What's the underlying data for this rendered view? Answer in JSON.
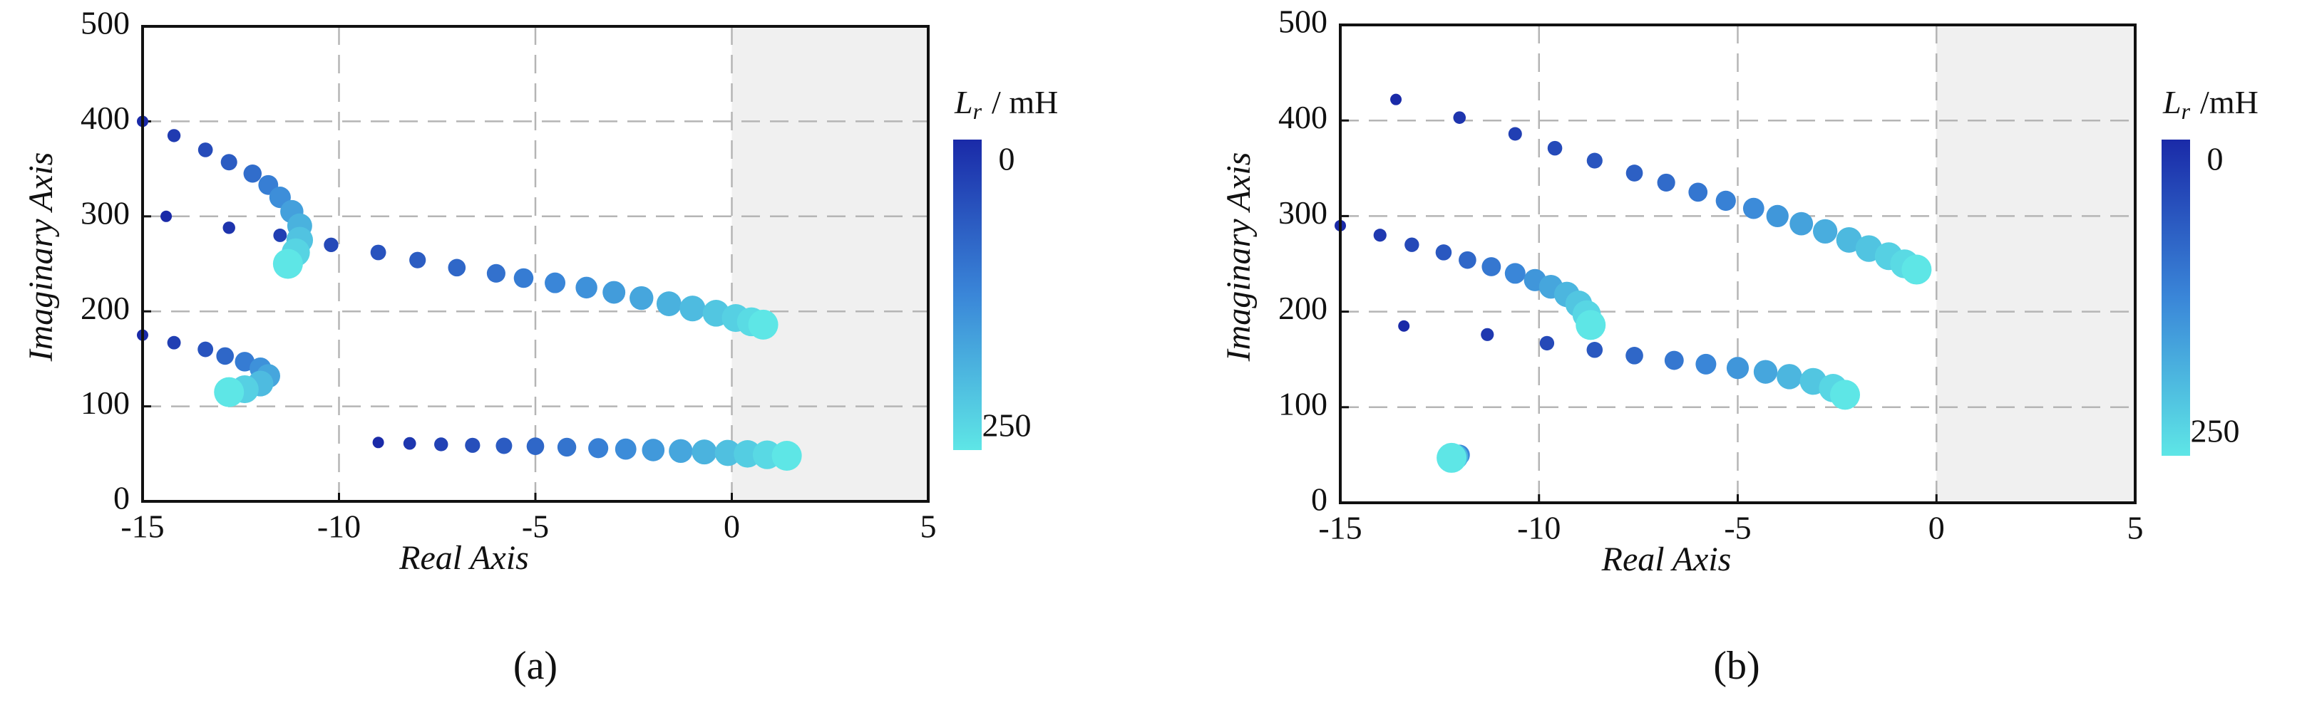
{
  "chart_data": [
    {
      "type": "scatter",
      "panel_label": "(a)",
      "x_label": "Real Axis",
      "y_label": "Imaginary Axis",
      "xlim": [
        -15,
        5
      ],
      "ylim": [
        0,
        500
      ],
      "xticks": [
        -15,
        -10,
        -5,
        0,
        5
      ],
      "yticks": [
        0,
        100,
        200,
        300,
        400,
        500
      ],
      "grid": true,
      "shaded_xrange": [
        0,
        5
      ],
      "shade_color": "#f0f0f0",
      "colorbar": {
        "symbol": "L",
        "subscript": "r",
        "unit": "/ mH",
        "clim": [
          0,
          250
        ],
        "ticks": [
          0,
          250
        ],
        "colormap": [
          "#1a2aa8",
          "#3a86d8",
          "#5ee6e6"
        ]
      },
      "series": [
        {
          "x": [
            -15,
            -14.2,
            -13.4,
            -12.8,
            -12.2,
            -11.8,
            -11.5,
            -11.2,
            -11.0,
            -11.0,
            -11.1,
            -11.3
          ],
          "y": [
            400,
            385,
            370,
            357,
            345,
            333,
            320,
            305,
            290,
            275,
            262,
            250
          ],
          "lr": [
            0,
            23,
            45,
            68,
            91,
            114,
            136,
            159,
            182,
            205,
            227,
            250
          ]
        },
        {
          "x": [
            -15,
            -14.2,
            -13.4,
            -12.9,
            -12.4,
            -12.0,
            -11.8,
            -12.0,
            -12.4,
            -12.8
          ],
          "y": [
            175,
            167,
            160,
            153,
            147,
            140,
            132,
            124,
            118,
            115
          ],
          "lr": [
            0,
            28,
            56,
            83,
            111,
            139,
            167,
            194,
            222,
            250
          ]
        },
        {
          "x": [
            -14.4,
            -12.8,
            -11.5,
            -10.2,
            -9,
            -8,
            -7,
            -6,
            -5.3,
            -4.5,
            -3.7,
            -3,
            -2.3,
            -1.6,
            -1,
            -0.4,
            0.1,
            0.5,
            0.8
          ],
          "y": [
            300,
            288,
            280,
            270,
            262,
            254,
            246,
            240,
            235,
            230,
            225,
            220,
            214,
            208,
            203,
            198,
            193,
            189,
            186
          ],
          "lr": [
            0,
            14,
            28,
            42,
            56,
            69,
            83,
            97,
            111,
            125,
            139,
            153,
            167,
            181,
            194,
            208,
            222,
            236,
            250
          ]
        },
        {
          "x": [
            -9,
            -8.2,
            -7.4,
            -6.6,
            -5.8,
            -5,
            -4.2,
            -3.4,
            -2.7,
            -2,
            -1.3,
            -0.7,
            -0.1,
            0.4,
            0.9,
            1.4
          ],
          "y": [
            62,
            61,
            60,
            59,
            58.5,
            58,
            57,
            56,
            55,
            54,
            53,
            52,
            51,
            50,
            49,
            48
          ],
          "lr": [
            0,
            17,
            33,
            50,
            67,
            83,
            100,
            117,
            133,
            150,
            167,
            183,
            200,
            217,
            233,
            250
          ]
        }
      ]
    },
    {
      "type": "scatter",
      "panel_label": "(b)",
      "x_label": "Real Axis",
      "y_label": "Imaginary Axis",
      "xlim": [
        -15,
        5
      ],
      "ylim": [
        0,
        500
      ],
      "xticks": [
        -15,
        -10,
        -5,
        0,
        5
      ],
      "yticks": [
        0,
        100,
        200,
        300,
        400,
        500
      ],
      "grid": true,
      "shaded_xrange": [
        0,
        5
      ],
      "shade_color": "#f0f0f0",
      "colorbar": {
        "symbol": "L",
        "subscript": "r",
        "unit": "/mH",
        "clim": [
          0,
          250
        ],
        "ticks": [
          0,
          250
        ],
        "colormap": [
          "#1a2aa8",
          "#3a86d8",
          "#5ee6e6"
        ]
      },
      "series": [
        {
          "x": [
            -13.6,
            -12,
            -10.6,
            -9.6,
            -8.6,
            -7.6,
            -6.8,
            -6,
            -5.3,
            -4.6,
            -4,
            -3.4,
            -2.8,
            -2.2,
            -1.7,
            -1.2,
            -0.8,
            -0.5
          ],
          "y": [
            422,
            403,
            386,
            371,
            358,
            345,
            335,
            325,
            316,
            308,
            300,
            292,
            284,
            275,
            266,
            258,
            250,
            244
          ],
          "lr": [
            0,
            15,
            29,
            44,
            59,
            74,
            88,
            103,
            118,
            132,
            147,
            162,
            176,
            191,
            206,
            221,
            235,
            250
          ]
        },
        {
          "x": [
            -15,
            -14,
            -13.2,
            -12.4,
            -11.8,
            -11.2,
            -10.6,
            -10.1,
            -9.7,
            -9.3,
            -9.0,
            -8.8,
            -8.7
          ],
          "y": [
            290,
            280,
            270,
            262,
            254,
            247,
            240,
            233,
            226,
            218,
            208,
            197,
            186
          ],
          "lr": [
            0,
            21,
            42,
            63,
            83,
            104,
            125,
            146,
            167,
            188,
            208,
            229,
            250
          ]
        },
        {
          "x": [
            -13.4,
            -11.3,
            -9.8,
            -8.6,
            -7.6,
            -6.6,
            -5.8,
            -5,
            -4.3,
            -3.7,
            -3.1,
            -2.6,
            -2.3
          ],
          "y": [
            185,
            176,
            167,
            160,
            154,
            149,
            145,
            141,
            137,
            132,
            127,
            120,
            113
          ],
          "lr": [
            0,
            21,
            42,
            63,
            83,
            104,
            125,
            146,
            167,
            188,
            208,
            229,
            250
          ]
        },
        {
          "x": [
            -12.2,
            -12.1,
            -12.0,
            -12.1,
            -12.2
          ],
          "y": [
            55,
            52,
            50,
            48,
            47
          ],
          "lr": [
            0,
            63,
            125,
            188,
            250
          ]
        }
      ]
    }
  ]
}
